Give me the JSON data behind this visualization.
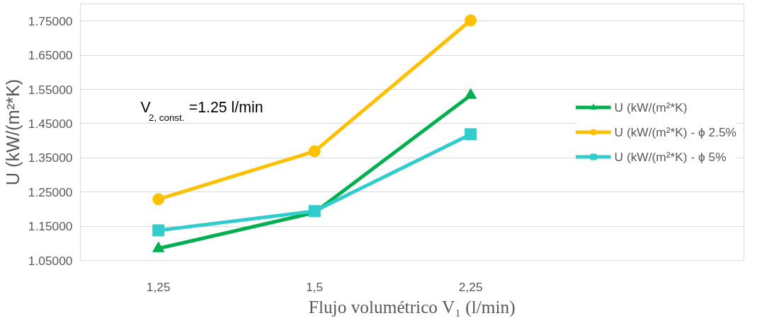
{
  "chart_data": {
    "type": "line",
    "xlabel": "Flujo volumétrico V₁ (l/min)",
    "ylabel": "U (kW/(m²*K)",
    "categories": [
      "1,25",
      "1,5",
      "2,25"
    ],
    "series": [
      {
        "name": "U (kW/(m²*K)",
        "color": "#00b050",
        "marker": "triangle",
        "values": [
          1.085,
          1.19,
          1.533
        ]
      },
      {
        "name": "U (kW/(m²*K) - ϕ 2.5%",
        "color": "#ffc000",
        "marker": "circle",
        "values": [
          1.229,
          1.369,
          1.752
        ]
      },
      {
        "name": "U (kW/(m²*K) - ϕ 5%",
        "color": "#33cccc",
        "marker": "square",
        "values": [
          1.138,
          1.194,
          1.419
        ]
      }
    ],
    "ylim": [
      1.05,
      1.8
    ],
    "yticks": [
      {
        "value": 1.05,
        "label": "1.05000"
      },
      {
        "value": 1.15,
        "label": "1.15000"
      },
      {
        "value": 1.25,
        "label": "1.25000"
      },
      {
        "value": 1.35,
        "label": "1.35000"
      },
      {
        "value": 1.45,
        "label": "1.45000"
      },
      {
        "value": 1.55,
        "label": "1.55000"
      },
      {
        "value": 1.65,
        "label": "1.65000"
      },
      {
        "value": 1.75,
        "label": "1.75000"
      }
    ],
    "grid": "y",
    "legend": "right",
    "line_style": "solid",
    "annotations": [
      "V$_{2, const.}$ =1.25 l/min"
    ]
  }
}
